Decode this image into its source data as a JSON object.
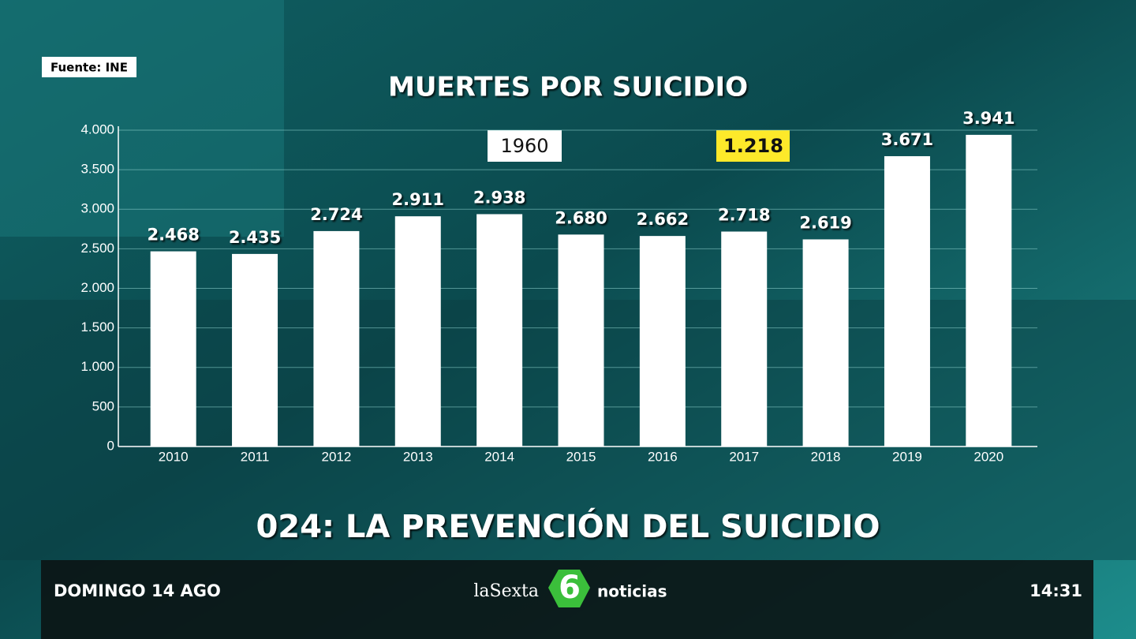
{
  "source": "Fuente: INE",
  "chart_data": {
    "type": "bar",
    "title": "MUERTES POR SUICIDIO",
    "categories": [
      "2010",
      "2011",
      "2012",
      "2013",
      "2014",
      "2015",
      "2016",
      "2017",
      "2018",
      "2019",
      "2020"
    ],
    "values": [
      2468,
      2435,
      2724,
      2911,
      2938,
      2680,
      2662,
      2718,
      2619,
      3671,
      3941
    ],
    "value_labels": [
      "2.468",
      "2.435",
      "2.724",
      "2.911",
      "2.938",
      "2.680",
      "2.662",
      "2.718",
      "2.619",
      "3.671",
      "3.941"
    ],
    "color": "#ffffff",
    "ylim": [
      0,
      4000
    ],
    "yticks": [
      0,
      500,
      {
        "value": 1000,
        "label": "1.000"
      },
      {
        "value": 1500,
        "label": "1.500"
      },
      {
        "value": 2000,
        "label": "2.000"
      },
      {
        "value": 2500,
        "label": "2.500"
      },
      {
        "value": 3000,
        "label": "3.000"
      },
      {
        "value": 3500,
        "label": "3.500"
      },
      {
        "value": 4000,
        "label": "4.000"
      }
    ],
    "grid": true,
    "annotations": [
      "1960",
      "1.218"
    ]
  },
  "headline": "024: LA PREVENCIÓN DEL SUICIDIO",
  "ticker": {
    "date": "DOMINGO 14 AGO",
    "brand": "laSexta",
    "logo": "6",
    "program": "noticias",
    "time": "14:31"
  }
}
